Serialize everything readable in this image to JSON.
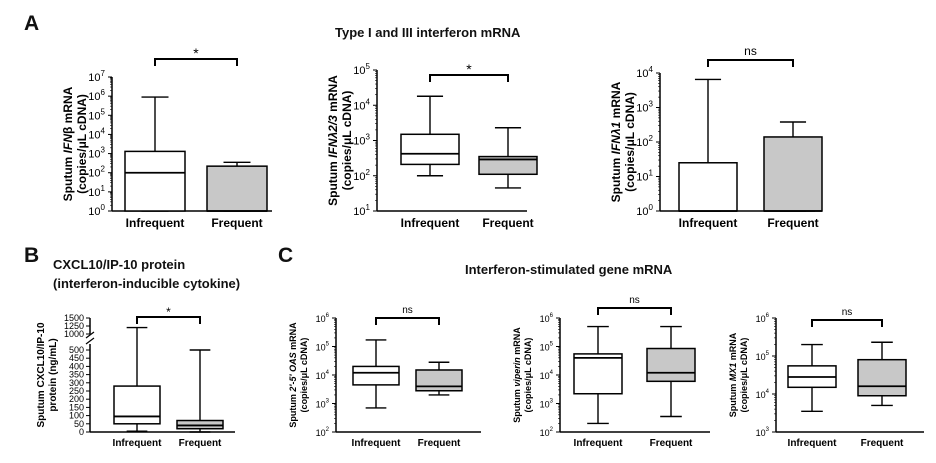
{
  "figure": {
    "panel_a_letter": "A",
    "panel_b_letter": "B",
    "panel_c_letter": "C",
    "panel_a_title": "Type I and III interferon mRNA",
    "panel_b_title_line1": "CXCL10/IP-10 protein",
    "panel_b_title_line2": "(interferon-inducible cytokine)",
    "panel_c_title": "Interferon-stimulated gene mRNA"
  },
  "chart_data": [
    {
      "id": "ifnb",
      "type": "boxplot",
      "scale": "log",
      "ylim": [
        1,
        10000000
      ],
      "y_ticks": [
        1,
        10,
        100,
        1000,
        10000,
        100000,
        1000000,
        10000000
      ],
      "y_tick_labels": [
        {
          "base": "10",
          "exp": "0"
        },
        {
          "base": "10",
          "exp": "1"
        },
        {
          "base": "10",
          "exp": "2"
        },
        {
          "base": "10",
          "exp": "3"
        },
        {
          "base": "10",
          "exp": "4"
        },
        {
          "base": "10",
          "exp": "5"
        },
        {
          "base": "10",
          "exp": "6"
        },
        {
          "base": "10",
          "exp": "7"
        }
      ],
      "ylabel_line1": {
        "pre": "Sputum ",
        "italic": "IFN",
        "post": "β mRNA"
      },
      "ylabel_line2": "(copies/μL cDNA)",
      "categories": [
        "Infrequent",
        "Frequent"
      ],
      "groups": [
        {
          "name": "Infrequent",
          "whisker_low": 1,
          "q1": 1,
          "median": 100,
          "q3": 1300,
          "whisker_high": 900000,
          "fill": "#ffffff"
        },
        {
          "name": "Frequent",
          "whisker_low": 1,
          "q1": 1,
          "median": 1,
          "q3": 220,
          "whisker_high": 350,
          "fill": "#c8c8c8"
        }
      ],
      "significance": "*"
    },
    {
      "id": "ifnl23",
      "type": "boxplot",
      "scale": "log",
      "ylim": [
        10,
        100000
      ],
      "y_ticks": [
        10,
        100,
        1000,
        10000,
        100000
      ],
      "y_tick_labels": [
        {
          "base": "10",
          "exp": "1"
        },
        {
          "base": "10",
          "exp": "2"
        },
        {
          "base": "10",
          "exp": "3"
        },
        {
          "base": "10",
          "exp": "4"
        },
        {
          "base": "10",
          "exp": "5"
        }
      ],
      "ylabel_line1": {
        "pre": "Sputum ",
        "italic": "IFNλ2/3",
        "post": " mRNA"
      },
      "ylabel_line2": "(copies/μL cDNA)",
      "categories": [
        "Infrequent",
        "Frequent"
      ],
      "groups": [
        {
          "name": "Infrequent",
          "whisker_low": 100,
          "q1": 210,
          "median": 420,
          "q3": 1500,
          "whisker_high": 18000,
          "fill": "#ffffff"
        },
        {
          "name": "Frequent",
          "whisker_low": 45,
          "q1": 110,
          "median": 290,
          "q3": 350,
          "whisker_high": 2300,
          "fill": "#c8c8c8"
        }
      ],
      "significance": "*"
    },
    {
      "id": "ifnl1",
      "type": "boxplot",
      "scale": "log",
      "ylim": [
        1,
        10000
      ],
      "y_ticks": [
        1,
        10,
        100,
        1000,
        10000
      ],
      "y_tick_labels": [
        {
          "base": "10",
          "exp": "0"
        },
        {
          "base": "10",
          "exp": "1"
        },
        {
          "base": "10",
          "exp": "2"
        },
        {
          "base": "10",
          "exp": "3"
        },
        {
          "base": "10",
          "exp": "4"
        }
      ],
      "ylabel_line1": {
        "pre": "Sputum ",
        "italic": "IFNλ1",
        "post": " mRNA"
      },
      "ylabel_line2": "(copies/μL cDNA)",
      "categories": [
        "Infrequent",
        "Frequent"
      ],
      "groups": [
        {
          "name": "Infrequent",
          "whisker_low": 1,
          "q1": 1,
          "median": 1,
          "q3": 25,
          "whisker_high": 6500,
          "fill": "#ffffff"
        },
        {
          "name": "Frequent",
          "whisker_low": 1,
          "q1": 1,
          "median": 1,
          "q3": 140,
          "whisker_high": 380,
          "fill": "#c8c8c8"
        }
      ],
      "significance": "ns"
    },
    {
      "id": "cxcl10",
      "type": "boxplot",
      "scale": "broken-linear",
      "lower_range": [
        0,
        500
      ],
      "upper_range": [
        1000,
        1500
      ],
      "y_ticks_lower": [
        0,
        50,
        100,
        150,
        200,
        250,
        300,
        350,
        400,
        450,
        500
      ],
      "y_ticks_upper": [
        1000,
        1250,
        1500
      ],
      "ylabel_line1": {
        "pre": "Sputum CXCL10/IP-10",
        "italic": "",
        "post": ""
      },
      "ylabel_line2": "protein (ng/mL)",
      "categories": [
        "Infrequent",
        "Frequent"
      ],
      "groups": [
        {
          "name": "Infrequent",
          "whisker_low": 5,
          "q1": 50,
          "median": 95,
          "q3": 280,
          "whisker_high": 1200,
          "fill": "#ffffff"
        },
        {
          "name": "Frequent",
          "whisker_low": 0,
          "q1": 20,
          "median": 40,
          "q3": 70,
          "whisker_high": 500,
          "fill": "#c8c8c8"
        }
      ],
      "significance": "*"
    },
    {
      "id": "oas",
      "type": "boxplot",
      "scale": "log",
      "ylim": [
        100,
        1000000
      ],
      "y_ticks": [
        100,
        1000,
        10000,
        100000,
        1000000
      ],
      "y_tick_labels": [
        {
          "base": "10",
          "exp": "2"
        },
        {
          "base": "10",
          "exp": "3"
        },
        {
          "base": "10",
          "exp": "4"
        },
        {
          "base": "10",
          "exp": "5"
        },
        {
          "base": "10",
          "exp": "6"
        }
      ],
      "ylabel_line1": {
        "pre": "Sputum ",
        "italic": "2'-5' OAS",
        "post": " mRNA"
      },
      "ylabel_line2": "(copies/μL cDNA)",
      "categories": [
        "Infrequent",
        "Frequent"
      ],
      "groups": [
        {
          "name": "Infrequent",
          "whisker_low": 700,
          "q1": 4500,
          "median": 12000,
          "q3": 20000,
          "whisker_high": 170000,
          "fill": "#ffffff"
        },
        {
          "name": "Frequent",
          "whisker_low": 2000,
          "q1": 2800,
          "median": 4000,
          "q3": 15000,
          "whisker_high": 28000,
          "fill": "#c8c8c8"
        }
      ],
      "significance": "ns"
    },
    {
      "id": "viperin",
      "type": "boxplot",
      "scale": "log",
      "ylim": [
        100,
        1000000
      ],
      "y_ticks": [
        100,
        1000,
        10000,
        100000,
        1000000
      ],
      "y_tick_labels": [
        {
          "base": "10",
          "exp": "2"
        },
        {
          "base": "10",
          "exp": "3"
        },
        {
          "base": "10",
          "exp": "4"
        },
        {
          "base": "10",
          "exp": "5"
        },
        {
          "base": "10",
          "exp": "6"
        }
      ],
      "ylabel_line1": {
        "pre": "Sputum ",
        "italic": "viperin",
        "post": " mRNA"
      },
      "ylabel_line2": "(copies/μL cDNA)",
      "categories": [
        "Infrequent",
        "Frequent"
      ],
      "groups": [
        {
          "name": "Infrequent",
          "whisker_low": 200,
          "q1": 2200,
          "median": 40000,
          "q3": 55000,
          "whisker_high": 500000,
          "fill": "#ffffff"
        },
        {
          "name": "Frequent",
          "whisker_low": 350,
          "q1": 6000,
          "median": 12000,
          "q3": 85000,
          "whisker_high": 500000,
          "fill": "#c8c8c8"
        }
      ],
      "significance": "ns"
    },
    {
      "id": "mx1",
      "type": "boxplot",
      "scale": "log",
      "ylim": [
        1000,
        1000000
      ],
      "y_ticks": [
        1000,
        10000,
        100000,
        1000000
      ],
      "y_tick_labels": [
        {
          "base": "10",
          "exp": "3"
        },
        {
          "base": "10",
          "exp": "4"
        },
        {
          "base": "10",
          "exp": "5"
        },
        {
          "base": "10",
          "exp": "6"
        }
      ],
      "ylabel_line1": {
        "pre": "Sputum ",
        "italic": "MX1",
        "post": " mRNA"
      },
      "ylabel_line2": "(copies/μL cDNA)",
      "categories": [
        "Infrequent",
        "Frequent"
      ],
      "groups": [
        {
          "name": "Infrequent",
          "whisker_low": 3500,
          "q1": 15000,
          "median": 28000,
          "q3": 55000,
          "whisker_high": 200000,
          "fill": "#ffffff"
        },
        {
          "name": "Frequent",
          "whisker_low": 5000,
          "q1": 9000,
          "median": 16000,
          "q3": 80000,
          "whisker_high": 230000,
          "fill": "#c8c8c8"
        }
      ],
      "significance": "ns"
    }
  ]
}
